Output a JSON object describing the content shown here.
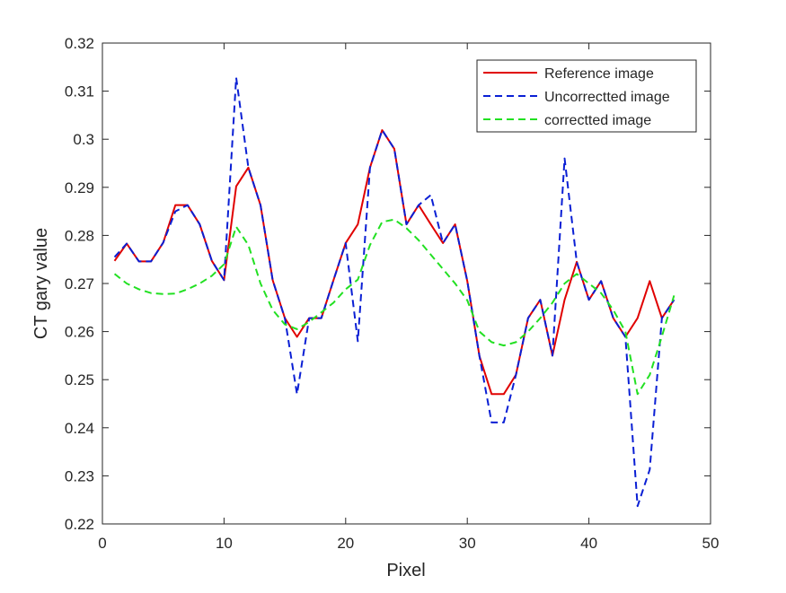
{
  "chart_data": {
    "type": "line",
    "title": "",
    "xlabel": "Pixel",
    "ylabel": "CT gary value",
    "xlim": [
      0,
      50
    ],
    "ylim": [
      0.22,
      0.32
    ],
    "xticks": [
      0,
      10,
      20,
      30,
      40,
      50
    ],
    "yticks": [
      0.22,
      0.23,
      0.24,
      0.25,
      0.26,
      0.27,
      0.28,
      0.29,
      0.3,
      0.31,
      0.32
    ],
    "grid": false,
    "legend_position": "top-right",
    "x": [
      1,
      2,
      3,
      4,
      5,
      6,
      7,
      8,
      9,
      10,
      11,
      12,
      13,
      14,
      15,
      16,
      17,
      18,
      19,
      20,
      21,
      22,
      23,
      24,
      25,
      26,
      27,
      28,
      29,
      30,
      31,
      32,
      33,
      34,
      35,
      36,
      37,
      38,
      39,
      40,
      41,
      42,
      43,
      44,
      45,
      46,
      47
    ],
    "series": [
      {
        "name": "Reference image",
        "color": "#e00000",
        "dash": "solid",
        "values": [
          0.2747,
          0.2783,
          0.2746,
          0.2746,
          0.2785,
          0.2863,
          0.2863,
          0.2823,
          0.2747,
          0.2707,
          0.2902,
          0.2941,
          0.2863,
          0.2707,
          0.2628,
          0.2589,
          0.2628,
          0.2628,
          0.2707,
          0.2784,
          0.2823,
          0.2941,
          0.3019,
          0.298,
          0.2823,
          0.2863,
          0.2823,
          0.2784,
          0.2823,
          0.2705,
          0.2549,
          0.247,
          0.247,
          0.251,
          0.2628,
          0.2666,
          0.255,
          0.2666,
          0.2745,
          0.2666,
          0.2705,
          0.2628,
          0.2589,
          0.2628,
          0.2705,
          0.2628,
          0.2666
        ]
      },
      {
        "name": "Uncorrectted image",
        "color": "#0a1fd4",
        "dash": "dashed",
        "values": [
          0.2755,
          0.2783,
          0.2746,
          0.2746,
          0.2785,
          0.285,
          0.2863,
          0.2823,
          0.2747,
          0.2707,
          0.3128,
          0.2941,
          0.2863,
          0.2707,
          0.2628,
          0.247,
          0.2628,
          0.2628,
          0.2707,
          0.2784,
          0.258,
          0.2941,
          0.3019,
          0.298,
          0.2823,
          0.2863,
          0.2884,
          0.2784,
          0.2823,
          0.2705,
          0.2549,
          0.2411,
          0.2411,
          0.251,
          0.2628,
          0.2666,
          0.255,
          0.296,
          0.2745,
          0.2666,
          0.2705,
          0.2628,
          0.2589,
          0.2237,
          0.2313,
          0.2628,
          0.2666
        ]
      },
      {
        "name": "correctted image",
        "color": "#22e022",
        "dash": "dashed",
        "values": [
          0.272,
          0.27,
          0.2688,
          0.268,
          0.2678,
          0.2679,
          0.2688,
          0.27,
          0.2716,
          0.274,
          0.2818,
          0.278,
          0.27,
          0.2645,
          0.2615,
          0.2605,
          0.262,
          0.264,
          0.266,
          0.2688,
          0.2708,
          0.278,
          0.2828,
          0.2833,
          0.2815,
          0.279,
          0.276,
          0.273,
          0.27,
          0.2665,
          0.26,
          0.2578,
          0.2571,
          0.2578,
          0.26,
          0.2628,
          0.266,
          0.27,
          0.272,
          0.27,
          0.268,
          0.2645,
          0.26,
          0.247,
          0.251,
          0.259,
          0.2675
        ]
      }
    ]
  }
}
